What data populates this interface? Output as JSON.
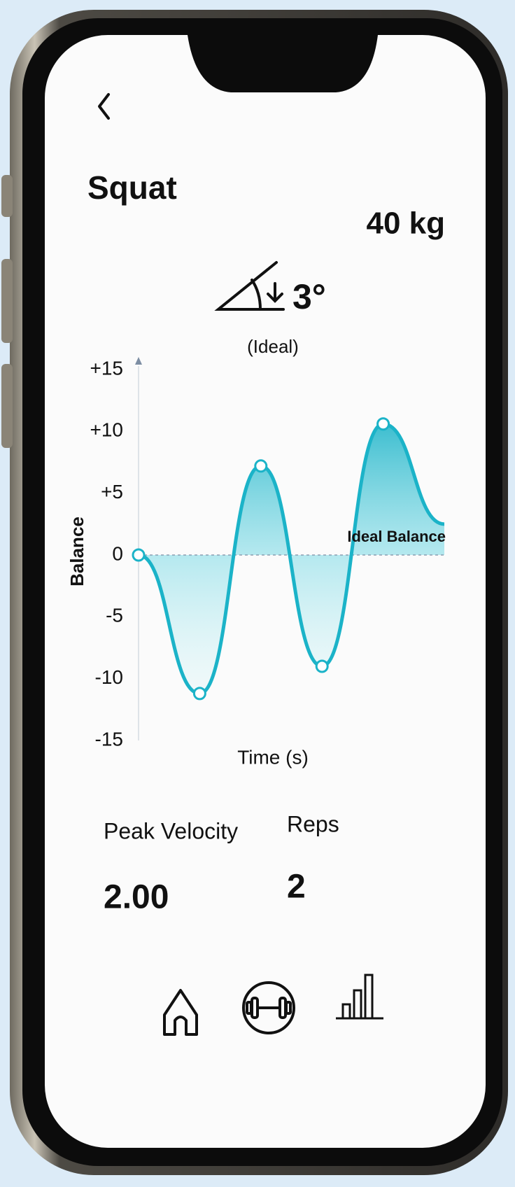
{
  "header": {
    "title": "Squat",
    "weight": "40 kg"
  },
  "angle": {
    "value": "3°",
    "note": "(Ideal)"
  },
  "chart_data": {
    "type": "line",
    "y_label": "Balance",
    "x_label": "Time (s)",
    "annotation": "Ideal Balance",
    "categories": [
      null,
      null,
      null,
      null,
      null,
      null
    ],
    "series": [
      {
        "color": "#1bb3c8",
        "values": [
          0,
          -11.2,
          7.2,
          -9,
          10.6,
          2.5
        ]
      }
    ],
    "ylim": [
      -15,
      15
    ],
    "yticks": [
      {
        "value": 15,
        "label": "+15"
      },
      {
        "value": 10,
        "label": "+10"
      },
      {
        "value": 5,
        "label": "+5"
      },
      0,
      -5,
      -10,
      -15
    ],
    "reference_line": 0
  },
  "stats": [
    {
      "label": "Peak Velocity",
      "value": "2.00"
    },
    {
      "label": "Reps",
      "value": "2"
    }
  ]
}
